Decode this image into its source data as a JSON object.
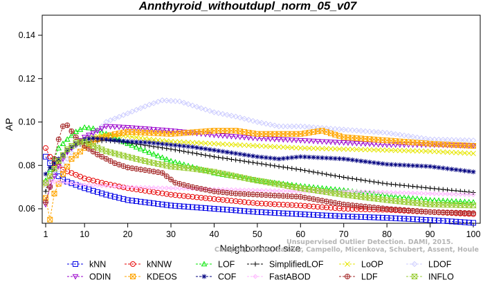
{
  "chart_data": {
    "type": "line",
    "title": "Annthyroid_withoutdupl_norm_05_v07",
    "xlabel": "Neighborhood size",
    "ylabel": "AP",
    "xlim": [
      1,
      100
    ],
    "ylim": [
      0.05,
      0.15
    ],
    "x_ticks": [
      1,
      10,
      20,
      30,
      40,
      50,
      60,
      70,
      80,
      90,
      100
    ],
    "y_ticks": [
      0.06,
      0.08,
      0.1,
      0.12,
      0.14
    ],
    "y_tick_labels": [
      "0.06",
      "0.08",
      "0.10",
      "0.12",
      "0.14"
    ],
    "grid": false,
    "legend_position": "bottom",
    "watermark": "Campos, Zimek, Sander, Campello, Micenkova, Schubert, Assent, Houle  Unsupervised Outlier Detection. DAMI, 2015.",
    "series": [
      {
        "name": "kNN",
        "color": "#0000e6",
        "marker": "square",
        "line": "dashed",
        "points": [
          [
            1,
            0.084
          ],
          [
            2,
            0.081
          ],
          [
            3,
            0.077
          ],
          [
            4,
            0.075
          ],
          [
            5,
            0.0735
          ],
          [
            6,
            0.0725
          ],
          [
            8,
            0.071
          ],
          [
            10,
            0.0695
          ],
          [
            15,
            0.0665
          ],
          [
            20,
            0.064
          ],
          [
            30,
            0.0615
          ],
          [
            40,
            0.06
          ],
          [
            50,
            0.0585
          ],
          [
            60,
            0.0575
          ],
          [
            70,
            0.0565
          ],
          [
            80,
            0.0558
          ],
          [
            90,
            0.0548
          ],
          [
            100,
            0.0535
          ]
        ]
      },
      {
        "name": "kNNW",
        "color": "#e60000",
        "marker": "circle",
        "line": "dashed",
        "points": [
          [
            1,
            0.088
          ],
          [
            2,
            0.084
          ],
          [
            3,
            0.081
          ],
          [
            4,
            0.0795
          ],
          [
            5,
            0.078
          ],
          [
            7,
            0.0765
          ],
          [
            10,
            0.074
          ],
          [
            15,
            0.0715
          ],
          [
            20,
            0.0695
          ],
          [
            30,
            0.0665
          ],
          [
            40,
            0.0645
          ],
          [
            50,
            0.0625
          ],
          [
            60,
            0.0615
          ],
          [
            70,
            0.06
          ],
          [
            80,
            0.0595
          ],
          [
            90,
            0.0585
          ],
          [
            100,
            0.0575
          ]
        ]
      },
      {
        "name": "LOF",
        "color": "#00e600",
        "marker": "triangle",
        "line": "dashed",
        "points": [
          [
            1,
            0.073
          ],
          [
            2,
            0.078
          ],
          [
            4,
            0.088
          ],
          [
            6,
            0.092
          ],
          [
            8,
            0.0955
          ],
          [
            10,
            0.0975
          ],
          [
            12,
            0.097
          ],
          [
            15,
            0.0945
          ],
          [
            20,
            0.09
          ],
          [
            25,
            0.086
          ],
          [
            30,
            0.082
          ],
          [
            40,
            0.0765
          ],
          [
            50,
            0.073
          ],
          [
            60,
            0.0705
          ],
          [
            70,
            0.0685
          ],
          [
            80,
            0.066
          ],
          [
            90,
            0.064
          ],
          [
            100,
            0.063
          ]
        ]
      },
      {
        "name": "SimplifiedLOF",
        "color": "#000000",
        "marker": "plus",
        "line": "dashed",
        "points": [
          [
            1,
            0.068
          ],
          [
            2,
            0.074
          ],
          [
            4,
            0.082
          ],
          [
            6,
            0.0865
          ],
          [
            8,
            0.089
          ],
          [
            10,
            0.0905
          ],
          [
            12,
            0.091
          ],
          [
            15,
            0.0915
          ],
          [
            20,
            0.0905
          ],
          [
            25,
            0.089
          ],
          [
            30,
            0.0875
          ],
          [
            40,
            0.084
          ],
          [
            50,
            0.081
          ],
          [
            60,
            0.078
          ],
          [
            70,
            0.0745
          ],
          [
            80,
            0.0715
          ],
          [
            90,
            0.0695
          ],
          [
            100,
            0.0675
          ]
        ]
      },
      {
        "name": "LoOP",
        "color": "#e6e600",
        "marker": "cross",
        "line": "dashed",
        "points": [
          [
            1,
            0.071
          ],
          [
            2,
            0.075
          ],
          [
            4,
            0.082
          ],
          [
            6,
            0.087
          ],
          [
            8,
            0.09
          ],
          [
            10,
            0.092
          ],
          [
            13,
            0.0935
          ],
          [
            15,
            0.094
          ],
          [
            20,
            0.0935
          ],
          [
            25,
            0.092
          ],
          [
            30,
            0.091
          ],
          [
            40,
            0.09
          ],
          [
            50,
            0.089
          ],
          [
            60,
            0.088
          ],
          [
            70,
            0.0875
          ],
          [
            80,
            0.087
          ],
          [
            90,
            0.0865
          ],
          [
            100,
            0.0855
          ]
        ]
      },
      {
        "name": "LDOF",
        "color": "#ccccff",
        "marker": "diamond",
        "line": "dashed",
        "points": [
          [
            1,
            0.071
          ],
          [
            2,
            0.074
          ],
          [
            4,
            0.078
          ],
          [
            6,
            0.083
          ],
          [
            8,
            0.089
          ],
          [
            10,
            0.092
          ],
          [
            13,
            0.096
          ],
          [
            15,
            0.1
          ],
          [
            20,
            0.104
          ],
          [
            25,
            0.108
          ],
          [
            28,
            0.11
          ],
          [
            32,
            0.1095
          ],
          [
            36,
            0.107
          ],
          [
            40,
            0.1045
          ],
          [
            45,
            0.1025
          ],
          [
            50,
            0.1
          ],
          [
            55,
            0.098
          ],
          [
            60,
            0.098
          ],
          [
            70,
            0.0965
          ],
          [
            80,
            0.095
          ],
          [
            90,
            0.092
          ],
          [
            100,
            0.0915
          ]
        ]
      },
      {
        "name": "ODIN",
        "color": "#9900cc",
        "marker": "triangle-down",
        "line": "dashed",
        "points": [
          [
            1,
            0.062
          ],
          [
            2,
            0.07
          ],
          [
            4,
            0.08
          ],
          [
            6,
            0.086
          ],
          [
            8,
            0.09
          ],
          [
            10,
            0.093
          ],
          [
            12,
            0.095
          ],
          [
            15,
            0.098
          ],
          [
            20,
            0.0975
          ],
          [
            30,
            0.096
          ],
          [
            40,
            0.094
          ],
          [
            50,
            0.0925
          ],
          [
            60,
            0.0915
          ],
          [
            70,
            0.0905
          ],
          [
            80,
            0.0895
          ],
          [
            90,
            0.0895
          ],
          [
            100,
            0.089
          ]
        ]
      },
      {
        "name": "KDEOS",
        "color": "#ffa500",
        "marker": "square-x",
        "line": "dashed",
        "points": [
          [
            1,
            0.065
          ],
          [
            2,
            0.055
          ],
          [
            3,
            0.067
          ],
          [
            5,
            0.076
          ],
          [
            7,
            0.083
          ],
          [
            10,
            0.088
          ],
          [
            13,
            0.092
          ],
          [
            16,
            0.094
          ],
          [
            20,
            0.0955
          ],
          [
            30,
            0.0945
          ],
          [
            40,
            0.096
          ],
          [
            45,
            0.096
          ],
          [
            50,
            0.0945
          ],
          [
            60,
            0.0945
          ],
          [
            65,
            0.096
          ],
          [
            70,
            0.093
          ],
          [
            80,
            0.0915
          ],
          [
            90,
            0.09
          ],
          [
            100,
            0.089
          ]
        ]
      },
      {
        "name": "COF",
        "color": "#000080",
        "marker": "asterisk",
        "line": "dashed",
        "points": [
          [
            1,
            0.076
          ],
          [
            2,
            0.079
          ],
          [
            4,
            0.083
          ],
          [
            6,
            0.087
          ],
          [
            8,
            0.09
          ],
          [
            10,
            0.092
          ],
          [
            12,
            0.0925
          ],
          [
            15,
            0.092
          ],
          [
            20,
            0.091
          ],
          [
            25,
            0.0905
          ],
          [
            30,
            0.0895
          ],
          [
            35,
            0.0885
          ],
          [
            40,
            0.087
          ],
          [
            45,
            0.0855
          ],
          [
            50,
            0.084
          ],
          [
            55,
            0.083
          ],
          [
            60,
            0.084
          ],
          [
            70,
            0.083
          ],
          [
            80,
            0.0805
          ],
          [
            90,
            0.0795
          ],
          [
            100,
            0.077
          ]
        ]
      },
      {
        "name": "FastABOD",
        "color": "#ffb3ff",
        "marker": "diamond-small",
        "line": "dashed",
        "points": [
          [
            1,
            0.072
          ],
          [
            2,
            0.0725
          ],
          [
            4,
            0.0725
          ],
          [
            6,
            0.072
          ],
          [
            8,
            0.0715
          ],
          [
            10,
            0.071
          ],
          [
            15,
            0.0705
          ],
          [
            20,
            0.07
          ],
          [
            30,
            0.0695
          ],
          [
            40,
            0.069
          ],
          [
            50,
            0.0685
          ],
          [
            60,
            0.068
          ],
          [
            70,
            0.068
          ],
          [
            80,
            0.0675
          ],
          [
            90,
            0.067
          ],
          [
            100,
            0.0665
          ]
        ]
      },
      {
        "name": "LDF",
        "color": "#a52a2a",
        "marker": "circle-plus",
        "line": "dashed",
        "points": [
          [
            1,
            0.063
          ],
          [
            2,
            0.07
          ],
          [
            3,
            0.083
          ],
          [
            4,
            0.092
          ],
          [
            5,
            0.098
          ],
          [
            6,
            0.0985
          ],
          [
            8,
            0.093
          ],
          [
            10,
            0.089
          ],
          [
            13,
            0.085
          ],
          [
            17,
            0.081
          ],
          [
            20,
            0.079
          ],
          [
            25,
            0.0775
          ],
          [
            28,
            0.0765
          ],
          [
            31,
            0.072
          ],
          [
            35,
            0.07
          ],
          [
            40,
            0.068
          ],
          [
            45,
            0.067
          ],
          [
            50,
            0.0665
          ],
          [
            55,
            0.066
          ],
          [
            60,
            0.0655
          ],
          [
            70,
            0.062
          ],
          [
            80,
            0.06
          ],
          [
            90,
            0.0585
          ],
          [
            100,
            0.058
          ]
        ]
      },
      {
        "name": "INFLO",
        "color": "#99cc33",
        "marker": "hourglass",
        "line": "dashed",
        "points": [
          [
            1,
            0.072
          ],
          [
            2,
            0.075
          ],
          [
            4,
            0.082
          ],
          [
            6,
            0.0875
          ],
          [
            8,
            0.0905
          ],
          [
            10,
            0.091
          ],
          [
            12,
            0.089
          ],
          [
            15,
            0.0865
          ],
          [
            20,
            0.084
          ],
          [
            25,
            0.0815
          ],
          [
            30,
            0.0795
          ],
          [
            35,
            0.0785
          ],
          [
            40,
            0.077
          ],
          [
            50,
            0.073
          ],
          [
            60,
            0.0695
          ],
          [
            70,
            0.0665
          ],
          [
            80,
            0.064
          ],
          [
            90,
            0.062
          ],
          [
            100,
            0.0615
          ]
        ]
      }
    ],
    "legend": {
      "rows": [
        [
          "kNN",
          "kNNW",
          "LOF",
          "SimplifiedLOF",
          "LoOP",
          "LDOF"
        ],
        [
          "ODIN",
          "KDEOS",
          "COF",
          "FastABOD",
          "LDF",
          "INFLO"
        ]
      ]
    }
  }
}
